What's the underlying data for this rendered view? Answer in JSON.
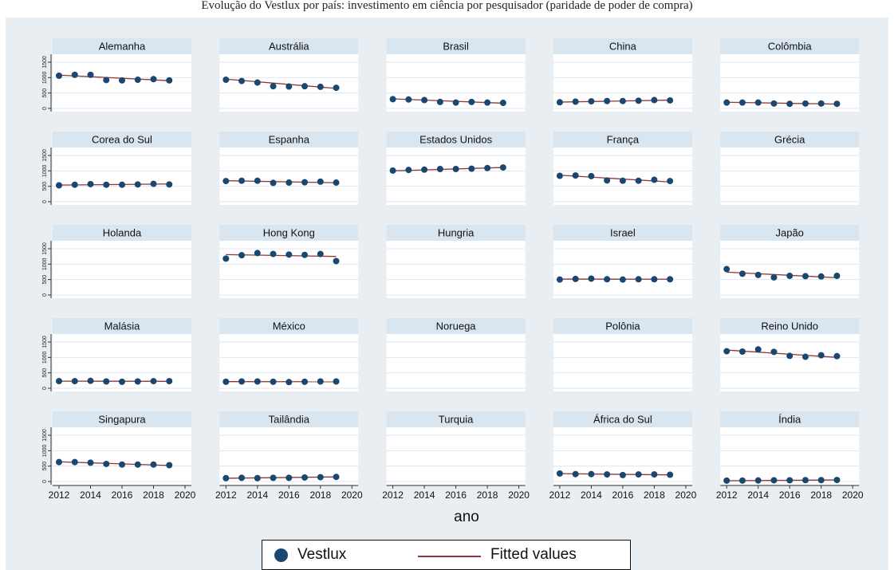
{
  "caption": "Evolução do Vestlux por país: investimento em ciência por pesquisador (paridade de poder de compra)",
  "colors": {
    "background": "#e9eef3",
    "strip": "#d9e5ef",
    "plot_area": "#ffffff",
    "marker": "#1a476f",
    "fit_line": "#90353b",
    "grid": "#dfe6ec"
  },
  "legend": {
    "marker_label": "Vestlux",
    "line_label": "Fitted values"
  },
  "chart_data": {
    "type": "scatter",
    "xlabel": "ano",
    "ylabel": "",
    "xlim": [
      2012,
      2020
    ],
    "ylim": [
      0,
      1500
    ],
    "x_ticks": [
      "2012",
      "2014",
      "2016",
      "2018",
      "2020"
    ],
    "y_ticks": [
      "0",
      "500",
      "1000",
      "1500"
    ],
    "grid": true,
    "legend_position": "bottom",
    "x": [
      2012,
      2013,
      2014,
      2015,
      2016,
      2017,
      2018,
      2019
    ],
    "panels": [
      {
        "name": "Alemanha",
        "values": [
          1060,
          1090,
          1090,
          920,
          910,
          930,
          950,
          910
        ],
        "fit": [
          1080,
          900
        ]
      },
      {
        "name": "Austrália",
        "values": [
          930,
          890,
          840,
          720,
          710,
          720,
          700,
          670
        ],
        "fit": [
          950,
          650
        ]
      },
      {
        "name": "Brasil",
        "values": [
          300,
          290,
          270,
          210,
          190,
          210,
          190,
          180
        ],
        "fit": [
          310,
          170
        ]
      },
      {
        "name": "China",
        "values": [
          200,
          220,
          230,
          240,
          240,
          250,
          270,
          260
        ],
        "fit": [
          205,
          270
        ]
      },
      {
        "name": "Colômbia",
        "values": [
          190,
          190,
          190,
          160,
          150,
          160,
          160,
          150
        ],
        "fit": [
          200,
          140
        ]
      },
      {
        "name": "Corea do Sul",
        "values": [
          530,
          550,
          570,
          550,
          550,
          560,
          580,
          560
        ],
        "fit": [
          540,
          575
        ]
      },
      {
        "name": "Espanha",
        "values": [
          670,
          680,
          680,
          610,
          620,
          630,
          650,
          620
        ],
        "fit": [
          680,
          615
        ]
      },
      {
        "name": "Estados Unidos",
        "values": [
          1010,
          1030,
          1040,
          1060,
          1060,
          1070,
          1090,
          1110
        ],
        "fit": [
          1000,
          1110
        ]
      },
      {
        "name": "França",
        "values": [
          840,
          850,
          830,
          690,
          680,
          680,
          710,
          670
        ],
        "fit": [
          860,
          640
        ]
      },
      {
        "name": "Grécia",
        "values": [],
        "fit": []
      },
      {
        "name": "Holanda",
        "values": [],
        "fit": []
      },
      {
        "name": "Hong Kong",
        "values": [
          1180,
          1290,
          1360,
          1330,
          1310,
          1300,
          1330,
          1100
        ],
        "fit": [
          1310,
          1250
        ]
      },
      {
        "name": "Hungria",
        "values": [],
        "fit": []
      },
      {
        "name": "Israel",
        "values": [
          500,
          520,
          530,
          510,
          500,
          510,
          510,
          510
        ],
        "fit": [
          515,
          510
        ]
      },
      {
        "name": "Japão",
        "values": [
          840,
          690,
          650,
          570,
          620,
          610,
          600,
          620
        ],
        "fit": [
          740,
          560
        ]
      },
      {
        "name": "Malásia",
        "values": [
          230,
          230,
          240,
          220,
          210,
          220,
          230,
          230
        ],
        "fit": [
          230,
          225
        ]
      },
      {
        "name": "México",
        "values": [
          210,
          220,
          220,
          210,
          200,
          210,
          220,
          220
        ],
        "fit": [
          215,
          212
        ]
      },
      {
        "name": "Noruega",
        "values": [],
        "fit": []
      },
      {
        "name": "Polônia",
        "values": [],
        "fit": []
      },
      {
        "name": "Reino Unido",
        "values": [
          1200,
          1190,
          1260,
          1180,
          1050,
          1020,
          1070,
          1040
        ],
        "fit": [
          1240,
          1000
        ]
      },
      {
        "name": "Singapura",
        "values": [
          630,
          630,
          610,
          570,
          550,
          550,
          550,
          530
        ],
        "fit": [
          640,
          520
        ]
      },
      {
        "name": "Tailândia",
        "values": [
          110,
          120,
          110,
          120,
          120,
          130,
          140,
          150
        ],
        "fit": [
          105,
          150
        ]
      },
      {
        "name": "Turquia",
        "values": [],
        "fit": []
      },
      {
        "name": "África do Sul",
        "values": [
          260,
          240,
          240,
          230,
          210,
          230,
          230,
          220
        ],
        "fit": [
          255,
          215
        ]
      },
      {
        "name": "Índia",
        "values": [
          30,
          30,
          35,
          40,
          40,
          45,
          45,
          50
        ],
        "fit": [
          25,
          50
        ]
      }
    ]
  }
}
